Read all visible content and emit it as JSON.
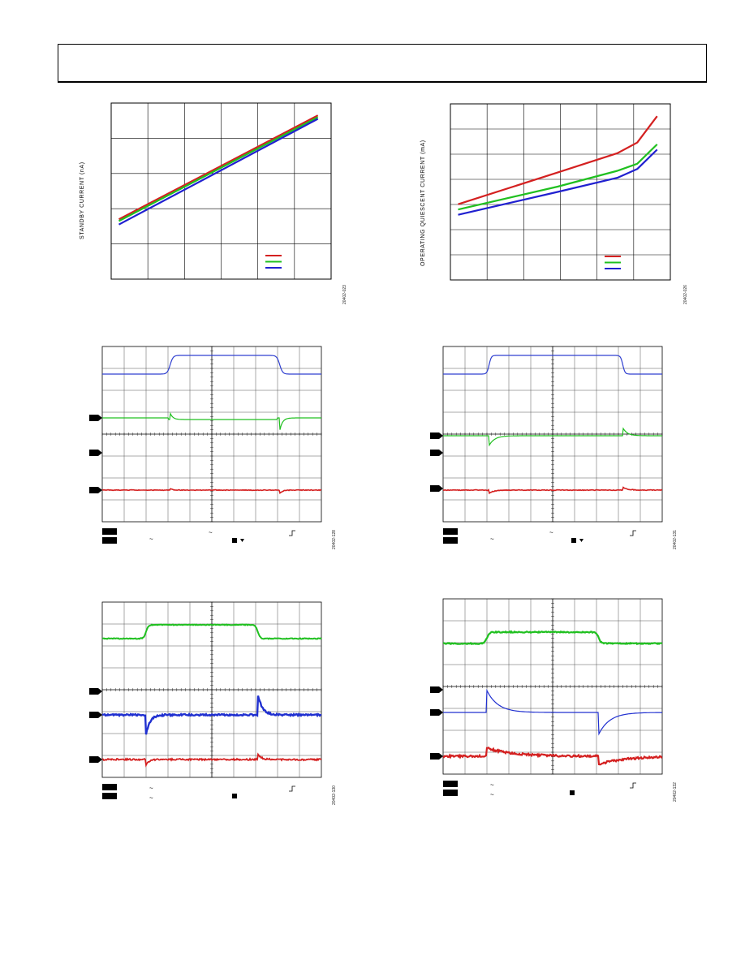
{
  "figures": {
    "standby": {
      "ylabel": "STANDBY CURRENT (nA)",
      "fig_id": "20402-023"
    },
    "quiescent": {
      "ylabel": "OPERATING QUIESCENT CURRENT (mA)",
      "fig_id": "20402-026"
    },
    "scope_top_left": {
      "fig_id": "20402-128"
    },
    "scope_top_right": {
      "fig_id": "20402-131"
    },
    "scope_bottom_left": {
      "fig_id": "20402-130"
    },
    "scope_bottom_right": {
      "fig_id": "20402-132"
    }
  },
  "chart_data": [
    {
      "type": "line",
      "name": "standby-current",
      "title": "",
      "ylabel": "STANDBY CURRENT (nA)",
      "xlabel": "",
      "grid": true,
      "legend": "bottom-right",
      "x": [
        0,
        1
      ],
      "series": [
        {
          "color": "#d42020",
          "values": [
            0.34,
            0.93
          ]
        },
        {
          "color": "#20c020",
          "values": [
            0.33,
            0.92
          ]
        },
        {
          "color": "#2020d0",
          "values": [
            0.31,
            0.91
          ]
        }
      ]
    },
    {
      "type": "line",
      "name": "operating-quiescent-current",
      "title": "",
      "ylabel": "OPERATING QUIESCENT CURRENT (mA)",
      "xlabel": "",
      "grid": true,
      "legend": "bottom-right",
      "x": [
        0,
        0.5,
        0.8,
        0.9,
        1
      ],
      "series": [
        {
          "color": "#d42020",
          "values": [
            0.43,
            0.61,
            0.72,
            0.78,
            0.93
          ]
        },
        {
          "color": "#20c020",
          "values": [
            0.4,
            0.53,
            0.62,
            0.66,
            0.77
          ]
        },
        {
          "color": "#2020d0",
          "values": [
            0.37,
            0.5,
            0.58,
            0.63,
            0.74
          ]
        }
      ]
    }
  ],
  "colors": {
    "red": "#d42020",
    "green": "#20c020",
    "blue": "#2030d0"
  }
}
